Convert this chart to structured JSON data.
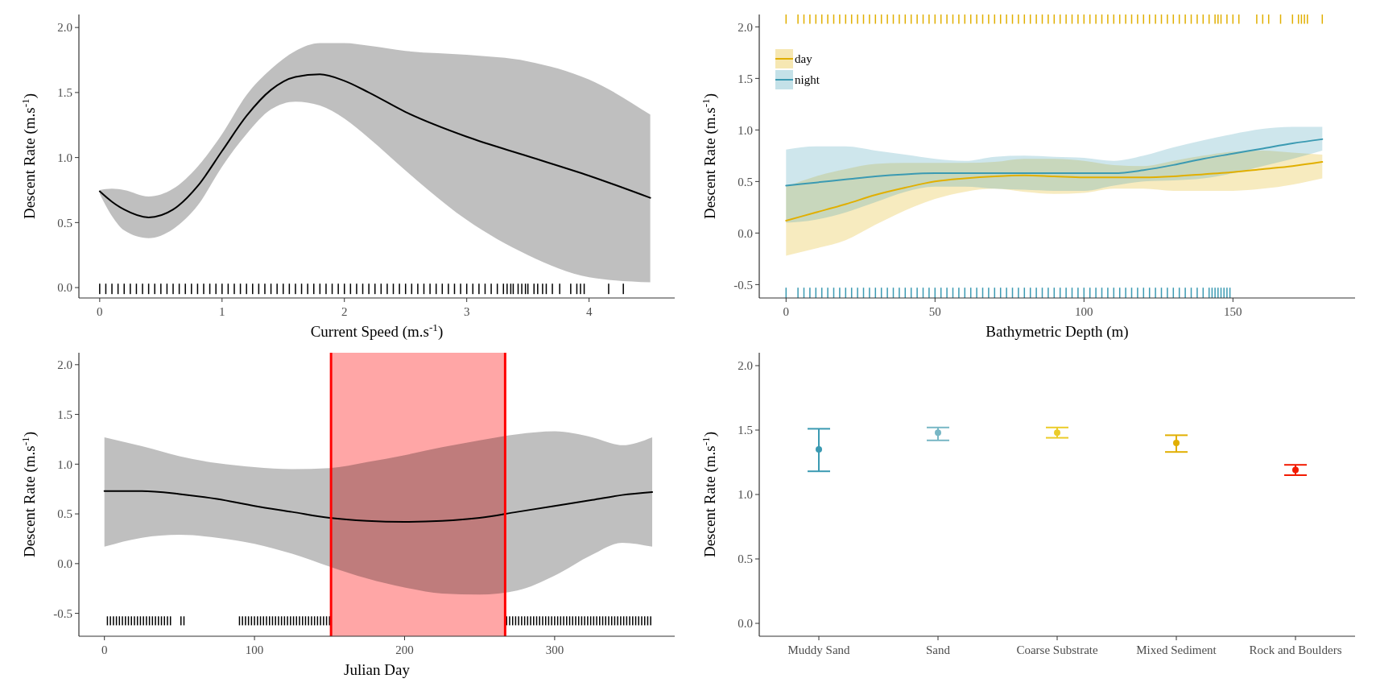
{
  "chart_data": [
    {
      "type": "line",
      "xlabel": "Current Speed (m.s$^{-1}$)",
      "ylabel": "Descent Rate (m.s$^{-1}$)",
      "xlim": [
        -0.17,
        4.7
      ],
      "ylim": [
        -0.08,
        2.1
      ],
      "xticks": [
        0,
        1,
        2,
        3,
        4
      ],
      "yticks": [
        {
          "value": 0,
          "label": "0.0"
        },
        {
          "value": 0.5,
          "label": "0.5"
        },
        {
          "value": 1,
          "label": "1.0"
        },
        {
          "value": 1.5,
          "label": "1.5"
        },
        {
          "value": 2,
          "label": "2.0"
        }
      ],
      "series": [
        {
          "color": "#000000",
          "x": [
            0,
            0.1,
            0.2,
            0.4,
            0.6,
            0.8,
            1.0,
            1.2,
            1.4,
            1.6,
            1.8,
            2.0,
            2.2,
            2.5,
            3.0,
            3.5,
            4.0,
            4.5
          ],
          "values": [
            0.74,
            0.66,
            0.6,
            0.54,
            0.6,
            0.78,
            1.05,
            1.32,
            1.52,
            1.62,
            1.64,
            1.59,
            1.5,
            1.35,
            1.16,
            1.01,
            0.86,
            0.69
          ],
          "lower": [
            0.72,
            0.55,
            0.44,
            0.38,
            0.45,
            0.63,
            0.93,
            1.18,
            1.37,
            1.43,
            1.4,
            1.3,
            1.15,
            0.9,
            0.52,
            0.25,
            0.08,
            0.04
          ],
          "upper": [
            0.75,
            0.76,
            0.75,
            0.7,
            0.76,
            0.93,
            1.18,
            1.48,
            1.68,
            1.82,
            1.88,
            1.88,
            1.86,
            1.82,
            1.79,
            1.74,
            1.6,
            1.33
          ]
        },
        {
          "type": "bar",
          "color": "#000000",
          "x": [
            0,
            0.05,
            0.1,
            0.15,
            0.2,
            0.25,
            0.3,
            0.35,
            0.4,
            0.45,
            0.5,
            0.55,
            0.6,
            0.65,
            0.7,
            0.75,
            0.8,
            0.85,
            0.9,
            0.95,
            1,
            1.05,
            1.1,
            1.15,
            1.2,
            1.25,
            1.3,
            1.35,
            1.4,
            1.45,
            1.5,
            1.55,
            1.6,
            1.65,
            1.7,
            1.75,
            1.8,
            1.85,
            1.9,
            1.95,
            2,
            2.05,
            2.1,
            2.15,
            2.2,
            2.25,
            2.3,
            2.35,
            2.4,
            2.45,
            2.5,
            2.55,
            2.6,
            2.65,
            2.7,
            2.75,
            2.8,
            2.85,
            2.9,
            2.95,
            3,
            3.05,
            3.1,
            3.15,
            3.2,
            3.25,
            3.3,
            3.33,
            3.36,
            3.38,
            3.42,
            3.45,
            3.48,
            3.5,
            3.55,
            3.58,
            3.62,
            3.65,
            3.7,
            3.76,
            3.85,
            3.9,
            3.93,
            3.96,
            4.16,
            4.28
          ],
          "values": [
            0.08,
            0.08,
            0.08,
            0.08,
            0.08,
            0.08,
            0.08,
            0.08,
            0.08,
            0.08,
            0.08,
            0.08,
            0.08,
            0.08,
            0.08,
            0.08,
            0.08,
            0.08,
            0.08,
            0.08,
            0.08,
            0.08,
            0.08,
            0.08,
            0.08,
            0.08,
            0.08,
            0.08,
            0.08,
            0.08,
            0.08,
            0.08,
            0.08,
            0.08,
            0.08,
            0.08,
            0.08,
            0.08,
            0.08,
            0.08,
            0.08,
            0.08,
            0.08,
            0.08,
            0.08,
            0.08,
            0.08,
            0.08,
            0.08,
            0.08,
            0.08,
            0.08,
            0.08,
            0.08,
            0.08,
            0.08,
            0.08,
            0.08,
            0.08,
            0.08,
            0.08,
            0.08,
            0.08,
            0.08,
            0.08,
            0.08,
            0.08,
            0.08,
            0.08,
            0.08,
            0.08,
            0.08,
            0.08,
            0.08,
            0.08,
            0.08,
            0.08,
            0.08,
            0.08,
            0.08,
            0.08,
            0.08,
            0.08,
            0.08,
            0.08,
            0.08
          ],
          "base": [
            -0.05,
            -0.05,
            -0.05,
            -0.05,
            -0.05,
            -0.05,
            -0.05,
            -0.05,
            -0.05,
            -0.05,
            -0.05,
            -0.05,
            -0.05,
            -0.05,
            -0.05,
            -0.05,
            -0.05,
            -0.05,
            -0.05,
            -0.05,
            -0.05,
            -0.05,
            -0.05,
            -0.05,
            -0.05,
            -0.05,
            -0.05,
            -0.05,
            -0.05,
            -0.05,
            -0.05,
            -0.05,
            -0.05,
            -0.05,
            -0.05,
            -0.05,
            -0.05,
            -0.05,
            -0.05,
            -0.05,
            -0.05,
            -0.05,
            -0.05,
            -0.05,
            -0.05,
            -0.05,
            -0.05,
            -0.05,
            -0.05,
            -0.05,
            -0.05,
            -0.05,
            -0.05,
            -0.05,
            -0.05,
            -0.05,
            -0.05,
            -0.05,
            -0.05,
            -0.05,
            -0.05,
            -0.05,
            -0.05,
            -0.05,
            -0.05,
            -0.05,
            -0.05,
            -0.05,
            -0.05,
            -0.05,
            -0.05,
            -0.05,
            -0.05,
            -0.05,
            -0.05,
            -0.05,
            -0.05,
            -0.05,
            -0.05,
            -0.05,
            -0.05,
            -0.05,
            -0.05,
            -0.05,
            -0.05,
            -0.05
          ]
        }
      ]
    },
    {
      "type": "line",
      "xlabel": "Bathymetric Depth (m)",
      "ylabel": "Descent Rate (m.s$^{-1}$)",
      "xlim": [
        -9,
        191
      ],
      "ylim": [
        -0.63,
        2.12
      ],
      "xticks": [
        0,
        50,
        100,
        150
      ],
      "yticks": [
        {
          "value": -0.5,
          "label": "-0.5"
        },
        {
          "value": 0,
          "label": "0.0"
        },
        {
          "value": 0.5,
          "label": "0.5"
        },
        {
          "value": 1,
          "label": "1.0"
        },
        {
          "value": 1.5,
          "label": "1.5"
        },
        {
          "value": 2,
          "label": "2.0"
        }
      ],
      "legend": "top left",
      "series": [
        {
          "name": "day",
          "color": "#e1af00",
          "x": [
            0,
            10,
            20,
            30,
            40,
            50,
            60,
            70,
            80,
            90,
            100,
            110,
            120,
            130,
            140,
            150,
            160,
            170,
            180
          ],
          "values": [
            0.12,
            0.2,
            0.28,
            0.37,
            0.44,
            0.5,
            0.53,
            0.55,
            0.56,
            0.55,
            0.54,
            0.54,
            0.54,
            0.55,
            0.57,
            0.59,
            0.62,
            0.65,
            0.69
          ],
          "lower": [
            -0.22,
            -0.15,
            -0.07,
            0.08,
            0.22,
            0.33,
            0.4,
            0.43,
            0.4,
            0.38,
            0.39,
            0.43,
            0.43,
            0.41,
            0.41,
            0.41,
            0.43,
            0.47,
            0.53
          ],
          "upper": [
            0.45,
            0.55,
            0.62,
            0.67,
            0.68,
            0.68,
            0.68,
            0.69,
            0.72,
            0.72,
            0.7,
            0.66,
            0.65,
            0.7,
            0.75,
            0.79,
            0.8,
            0.78,
            0.76
          ]
        },
        {
          "name": "night",
          "color": "#3b9ab2",
          "x": [
            0,
            10,
            20,
            30,
            40,
            50,
            60,
            70,
            80,
            90,
            100,
            110,
            120,
            130,
            140,
            150,
            160,
            170,
            180
          ],
          "values": [
            0.46,
            0.49,
            0.52,
            0.55,
            0.57,
            0.58,
            0.58,
            0.58,
            0.58,
            0.58,
            0.58,
            0.58,
            0.61,
            0.66,
            0.72,
            0.77,
            0.82,
            0.87,
            0.91
          ],
          "lower": [
            0.1,
            0.13,
            0.2,
            0.3,
            0.4,
            0.45,
            0.45,
            0.43,
            0.42,
            0.41,
            0.41,
            0.46,
            0.5,
            0.51,
            0.53,
            0.58,
            0.65,
            0.72,
            0.8
          ],
          "upper": [
            0.81,
            0.84,
            0.84,
            0.8,
            0.76,
            0.72,
            0.7,
            0.74,
            0.75,
            0.74,
            0.73,
            0.7,
            0.75,
            0.83,
            0.9,
            0.96,
            1.01,
            1.03,
            1.03
          ]
        },
        {
          "type": "bar",
          "color": "#e1af00",
          "x": [
            0,
            4,
            6,
            8,
            10,
            12,
            14,
            16,
            18,
            20,
            22,
            24,
            26,
            28,
            30,
            32,
            34,
            36,
            38,
            40,
            42,
            44,
            46,
            48,
            50,
            52,
            54,
            56,
            58,
            60,
            62,
            64,
            66,
            68,
            70,
            72,
            74,
            76,
            78,
            80,
            82,
            84,
            86,
            88,
            90,
            92,
            94,
            96,
            98,
            100,
            102,
            104,
            106,
            108,
            110,
            112,
            114,
            116,
            118,
            120,
            122,
            124,
            126,
            128,
            130,
            132,
            134,
            136,
            138,
            140,
            142,
            144,
            145,
            146,
            148,
            150,
            152,
            158,
            160,
            162,
            166,
            170,
            172,
            173,
            174,
            175,
            180
          ],
          "values": [
            0.09,
            0.09,
            0.09,
            0.09,
            0.09,
            0.09,
            0.09,
            0.09,
            0.09,
            0.09,
            0.09,
            0.09,
            0.09,
            0.09,
            0.09,
            0.09,
            0.09,
            0.09,
            0.09,
            0.09,
            0.09,
            0.09,
            0.09,
            0.09,
            0.09,
            0.09,
            0.09,
            0.09,
            0.09,
            0.09,
            0.09,
            0.09,
            0.09,
            0.09,
            0.09,
            0.09,
            0.09,
            0.09,
            0.09,
            0.09,
            0.09,
            0.09,
            0.09,
            0.09,
            0.09,
            0.09,
            0.09,
            0.09,
            0.09,
            0.09,
            0.09,
            0.09,
            0.09,
            0.09,
            0.09,
            0.09,
            0.09,
            0.09,
            0.09,
            0.09,
            0.09,
            0.09,
            0.09,
            0.09,
            0.09,
            0.09,
            0.09,
            0.09,
            0.09,
            0.09,
            0.09,
            0.09,
            0.09,
            0.09,
            0.09,
            0.09,
            0.09,
            0.09,
            0.09,
            0.09,
            0.09,
            0.09,
            0.09,
            0.09,
            0.09,
            0.09,
            0.09
          ],
          "base": [
            2.03,
            2.03,
            2.03,
            2.03,
            2.03,
            2.03,
            2.03,
            2.03,
            2.03,
            2.03,
            2.03,
            2.03,
            2.03,
            2.03,
            2.03,
            2.03,
            2.03,
            2.03,
            2.03,
            2.03,
            2.03,
            2.03,
            2.03,
            2.03,
            2.03,
            2.03,
            2.03,
            2.03,
            2.03,
            2.03,
            2.03,
            2.03,
            2.03,
            2.03,
            2.03,
            2.03,
            2.03,
            2.03,
            2.03,
            2.03,
            2.03,
            2.03,
            2.03,
            2.03,
            2.03,
            2.03,
            2.03,
            2.03,
            2.03,
            2.03,
            2.03,
            2.03,
            2.03,
            2.03,
            2.03,
            2.03,
            2.03,
            2.03,
            2.03,
            2.03,
            2.03,
            2.03,
            2.03,
            2.03,
            2.03,
            2.03,
            2.03,
            2.03,
            2.03,
            2.03,
            2.03,
            2.03,
            2.03,
            2.03,
            2.03,
            2.03,
            2.03,
            2.03,
            2.03,
            2.03,
            2.03,
            2.03,
            2.03,
            2.03,
            2.03,
            2.03,
            2.03
          ]
        },
        {
          "type": "bar",
          "color": "#3b9ab2",
          "x": [
            0,
            4,
            6,
            8,
            10,
            12,
            14,
            16,
            18,
            20,
            22,
            24,
            26,
            28,
            30,
            32,
            34,
            36,
            38,
            40,
            42,
            44,
            46,
            48,
            50,
            52,
            54,
            56,
            58,
            60,
            62,
            64,
            66,
            68,
            70,
            72,
            74,
            76,
            78,
            80,
            82,
            84,
            86,
            88,
            90,
            92,
            94,
            96,
            98,
            100,
            102,
            104,
            106,
            108,
            110,
            112,
            114,
            116,
            118,
            120,
            122,
            124,
            126,
            128,
            130,
            132,
            134,
            136,
            138,
            140,
            142,
            143,
            144,
            145,
            146,
            147,
            148,
            149
          ],
          "values": [
            0.1,
            0.1,
            0.1,
            0.1,
            0.1,
            0.1,
            0.1,
            0.1,
            0.1,
            0.1,
            0.1,
            0.1,
            0.1,
            0.1,
            0.1,
            0.1,
            0.1,
            0.1,
            0.1,
            0.1,
            0.1,
            0.1,
            0.1,
            0.1,
            0.1,
            0.1,
            0.1,
            0.1,
            0.1,
            0.1,
            0.1,
            0.1,
            0.1,
            0.1,
            0.1,
            0.1,
            0.1,
            0.1,
            0.1,
            0.1,
            0.1,
            0.1,
            0.1,
            0.1,
            0.1,
            0.1,
            0.1,
            0.1,
            0.1,
            0.1,
            0.1,
            0.1,
            0.1,
            0.1,
            0.1,
            0.1,
            0.1,
            0.1,
            0.1,
            0.1,
            0.1,
            0.1,
            0.1,
            0.1,
            0.1,
            0.1,
            0.1,
            0.1,
            0.1,
            0.1,
            0.1,
            0.1,
            0.1,
            0.1,
            0.1,
            0.1,
            0.1,
            0.1
          ],
          "base": [
            -0.63,
            -0.63,
            -0.63,
            -0.63,
            -0.63,
            -0.63,
            -0.63,
            -0.63,
            -0.63,
            -0.63,
            -0.63,
            -0.63,
            -0.63,
            -0.63,
            -0.63,
            -0.63,
            -0.63,
            -0.63,
            -0.63,
            -0.63,
            -0.63,
            -0.63,
            -0.63,
            -0.63,
            -0.63,
            -0.63,
            -0.63,
            -0.63,
            -0.63,
            -0.63,
            -0.63,
            -0.63,
            -0.63,
            -0.63,
            -0.63,
            -0.63,
            -0.63,
            -0.63,
            -0.63,
            -0.63,
            -0.63,
            -0.63,
            -0.63,
            -0.63,
            -0.63,
            -0.63,
            -0.63,
            -0.63,
            -0.63,
            -0.63,
            -0.63,
            -0.63,
            -0.63,
            -0.63,
            -0.63,
            -0.63,
            -0.63,
            -0.63,
            -0.63,
            -0.63,
            -0.63,
            -0.63,
            -0.63,
            -0.63,
            -0.63,
            -0.63,
            -0.63,
            -0.63,
            -0.63,
            -0.63,
            -0.63,
            -0.63,
            -0.63,
            -0.63,
            -0.63,
            -0.63,
            -0.63,
            -0.63
          ]
        }
      ]
    },
    {
      "type": "line",
      "xlabel": "Julian Day",
      "ylabel": "Descent Rate (m.s$^{-1}$)",
      "xlim": [
        -17,
        380
      ],
      "ylim": [
        -0.73,
        2.12
      ],
      "xticks": [
        0,
        100,
        200,
        300
      ],
      "yticks": [
        {
          "value": -0.5,
          "label": "-0.5"
        },
        {
          "value": 0,
          "label": "0.0"
        },
        {
          "value": 0.5,
          "label": "0.5"
        },
        {
          "value": 1,
          "label": "1.0"
        },
        {
          "value": 1.5,
          "label": "1.5"
        },
        {
          "value": 2,
          "label": "2.0"
        }
      ],
      "bands": [
        {
          "axis": "x",
          "from": 151,
          "to": 267,
          "color": "#ff0000"
        }
      ],
      "ref_lines": [
        {
          "axis": "x",
          "value": 151,
          "color": "#ff0000"
        },
        {
          "axis": "x",
          "value": 267,
          "color": "#ff0000"
        }
      ],
      "series": [
        {
          "color": "#000000",
          "x": [
            0,
            25,
            50,
            75,
            100,
            125,
            150,
            175,
            200,
            225,
            250,
            275,
            300,
            325,
            345,
            365
          ],
          "values": [
            0.73,
            0.73,
            0.7,
            0.65,
            0.58,
            0.52,
            0.46,
            0.43,
            0.42,
            0.43,
            0.46,
            0.52,
            0.58,
            0.64,
            0.69,
            0.72
          ],
          "lower": [
            0.17,
            0.26,
            0.29,
            0.26,
            0.2,
            0.1,
            -0.03,
            -0.15,
            -0.24,
            -0.3,
            -0.31,
            -0.27,
            -0.12,
            0.09,
            0.21,
            0.17
          ],
          "upper": [
            1.27,
            1.18,
            1.08,
            1.01,
            0.97,
            0.95,
            0.96,
            1.02,
            1.09,
            1.17,
            1.24,
            1.3,
            1.33,
            1.27,
            1.19,
            1.27
          ]
        },
        {
          "type": "bar",
          "color": "#000000",
          "x": [
            2,
            4,
            6,
            8,
            10,
            12,
            14,
            16,
            18,
            20,
            22,
            24,
            26,
            28,
            30,
            32,
            34,
            36,
            38,
            40,
            42,
            44,
            51,
            53,
            90,
            92,
            94,
            96,
            98,
            100,
            102,
            104,
            106,
            108,
            110,
            112,
            114,
            116,
            118,
            120,
            122,
            124,
            126,
            128,
            130,
            132,
            134,
            136,
            138,
            140,
            142,
            144,
            146,
            148,
            150,
            268,
            270,
            272,
            274,
            276,
            278,
            280,
            282,
            284,
            286,
            288,
            290,
            292,
            294,
            296,
            298,
            300,
            302,
            304,
            306,
            308,
            310,
            312,
            314,
            316,
            318,
            320,
            322,
            324,
            326,
            328,
            330,
            332,
            334,
            336,
            338,
            340,
            342,
            344,
            346,
            348,
            350,
            352,
            354,
            356,
            358,
            360,
            362,
            364
          ],
          "values": [
            0.09,
            0.09,
            0.09,
            0.09,
            0.09,
            0.09,
            0.09,
            0.09,
            0.09,
            0.09,
            0.09,
            0.09,
            0.09,
            0.09,
            0.09,
            0.09,
            0.09,
            0.09,
            0.09,
            0.09,
            0.09,
            0.09,
            0.09,
            0.09,
            0.09,
            0.09,
            0.09,
            0.09,
            0.09,
            0.09,
            0.09,
            0.09,
            0.09,
            0.09,
            0.09,
            0.09,
            0.09,
            0.09,
            0.09,
            0.09,
            0.09,
            0.09,
            0.09,
            0.09,
            0.09,
            0.09,
            0.09,
            0.09,
            0.09,
            0.09,
            0.09,
            0.09,
            0.09,
            0.09,
            0.09,
            0.09,
            0.09,
            0.09,
            0.09,
            0.09,
            0.09,
            0.09,
            0.09,
            0.09,
            0.09,
            0.09,
            0.09,
            0.09,
            0.09,
            0.09,
            0.09,
            0.09,
            0.09,
            0.09,
            0.09,
            0.09,
            0.09,
            0.09,
            0.09,
            0.09,
            0.09,
            0.09,
            0.09,
            0.09,
            0.09,
            0.09,
            0.09,
            0.09,
            0.09,
            0.09,
            0.09,
            0.09,
            0.09,
            0.09,
            0.09,
            0.09,
            0.09,
            0.09,
            0.09,
            0.09,
            0.09,
            0.09,
            0.09,
            0.09
          ],
          "base": [
            -0.62,
            -0.62,
            -0.62,
            -0.62,
            -0.62,
            -0.62,
            -0.62,
            -0.62,
            -0.62,
            -0.62,
            -0.62,
            -0.62,
            -0.62,
            -0.62,
            -0.62,
            -0.62,
            -0.62,
            -0.62,
            -0.62,
            -0.62,
            -0.62,
            -0.62,
            -0.62,
            -0.62,
            -0.62,
            -0.62,
            -0.62,
            -0.62,
            -0.62,
            -0.62,
            -0.62,
            -0.62,
            -0.62,
            -0.62,
            -0.62,
            -0.62,
            -0.62,
            -0.62,
            -0.62,
            -0.62,
            -0.62,
            -0.62,
            -0.62,
            -0.62,
            -0.62,
            -0.62,
            -0.62,
            -0.62,
            -0.62,
            -0.62,
            -0.62,
            -0.62,
            -0.62,
            -0.62,
            -0.62,
            -0.62,
            -0.62,
            -0.62,
            -0.62,
            -0.62,
            -0.62,
            -0.62,
            -0.62,
            -0.62,
            -0.62,
            -0.62,
            -0.62,
            -0.62,
            -0.62,
            -0.62,
            -0.62,
            -0.62,
            -0.62,
            -0.62,
            -0.62,
            -0.62,
            -0.62,
            -0.62,
            -0.62,
            -0.62,
            -0.62,
            -0.62,
            -0.62,
            -0.62,
            -0.62,
            -0.62,
            -0.62,
            -0.62,
            -0.62,
            -0.62,
            -0.62,
            -0.62,
            -0.62,
            -0.62,
            -0.62,
            -0.62,
            -0.62,
            -0.62,
            -0.62,
            -0.62,
            -0.62,
            -0.62,
            -0.62,
            -0.62
          ]
        }
      ]
    },
    {
      "type": "scatter",
      "ylabel": "Descent Rate (m.s$^{-1}$)",
      "categories": [
        "Muddy Sand",
        "Sand",
        "Coarse Substrate",
        "Mixed Sediment",
        "Rock and Boulders"
      ],
      "values": [
        1.35,
        1.48,
        1.48,
        1.4,
        1.19
      ],
      "errors": [
        [
          1.18,
          1.51
        ],
        [
          1.42,
          1.52
        ],
        [
          1.44,
          1.52
        ],
        [
          1.33,
          1.46
        ],
        [
          1.15,
          1.23
        ]
      ],
      "colors": [
        "#3b9ab2",
        "#78b7c5",
        "#ebcc2a",
        "#e1af00",
        "#f21a00"
      ],
      "marker": "circle",
      "ylim": [
        -0.1,
        2.1
      ],
      "yticks": [
        {
          "value": 0,
          "label": "0.0"
        },
        {
          "value": 0.5,
          "label": "0.5"
        },
        {
          "value": 1,
          "label": "1.0"
        },
        {
          "value": 1.5,
          "label": "1.5"
        },
        {
          "value": 2,
          "label": "2.0"
        }
      ]
    }
  ]
}
